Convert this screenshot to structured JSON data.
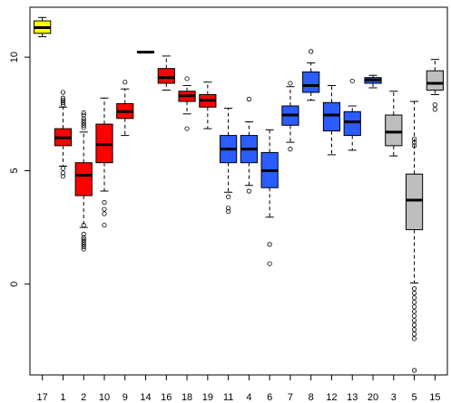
{
  "chart_data": {
    "type": "box",
    "title": "",
    "xlabel": "",
    "ylabel": "",
    "ylim": [
      -4,
      12.2
    ],
    "yticks": [
      0,
      5,
      10
    ],
    "grid": false,
    "legend": "none",
    "categories": [
      "17",
      "1",
      "2",
      "10",
      "9",
      "14",
      "16",
      "18",
      "19",
      "11",
      "4",
      "6",
      "7",
      "8",
      "12",
      "13",
      "20",
      "3",
      "5",
      "15"
    ],
    "colors": {
      "yellow": "#ffff00",
      "red": "#ff0000",
      "blue": "#2a5cff",
      "gray": "#bebebe"
    },
    "boxes": [
      {
        "label": "17",
        "color": "yellow",
        "whisker_low": 10.9,
        "q1": 11.05,
        "median": 11.3,
        "q3": 11.6,
        "whisker_high": 11.75,
        "outliers": []
      },
      {
        "label": "1",
        "color": "red",
        "whisker_low": 5.2,
        "q1": 6.1,
        "median": 6.45,
        "q3": 6.85,
        "whisker_high": 7.8,
        "outliers": [
          4.75,
          4.9,
          5.1,
          7.9,
          8.0,
          8.1,
          8.2,
          8.45
        ]
      },
      {
        "label": "2",
        "color": "red",
        "whisker_low": 2.5,
        "q1": 3.9,
        "median": 4.8,
        "q3": 5.35,
        "whisker_high": 6.7,
        "outliers": [
          1.55,
          1.65,
          1.75,
          1.85,
          1.95,
          2.05,
          2.2,
          2.6,
          6.9,
          7.0,
          7.1,
          7.2,
          7.3,
          7.45,
          7.55
        ]
      },
      {
        "label": "10",
        "color": "red",
        "whisker_low": 4.1,
        "q1": 5.35,
        "median": 6.15,
        "q3": 7.05,
        "whisker_high": 8.2,
        "outliers": [
          2.6,
          3.1,
          3.3,
          3.6
        ]
      },
      {
        "label": "9",
        "color": "red",
        "whisker_low": 6.55,
        "q1": 7.3,
        "median": 7.6,
        "q3": 7.95,
        "whisker_high": 8.6,
        "outliers": [
          8.9
        ]
      },
      {
        "label": "14",
        "color": "red",
        "whisker_low": 10.2,
        "q1": 10.2,
        "median": 10.22,
        "q3": 10.25,
        "whisker_high": 10.25,
        "outliers": []
      },
      {
        "label": "16",
        "color": "red",
        "whisker_low": 8.55,
        "q1": 8.85,
        "median": 9.1,
        "q3": 9.5,
        "whisker_high": 10.05,
        "outliers": []
      },
      {
        "label": "18",
        "color": "red",
        "whisker_low": 7.5,
        "q1": 8.05,
        "median": 8.3,
        "q3": 8.5,
        "whisker_high": 8.75,
        "outliers": [
          6.85,
          9.05
        ]
      },
      {
        "label": "19",
        "color": "red",
        "whisker_low": 6.85,
        "q1": 7.8,
        "median": 8.1,
        "q3": 8.35,
        "whisker_high": 8.9,
        "outliers": []
      },
      {
        "label": "11",
        "color": "blue",
        "whisker_low": 4.05,
        "q1": 5.35,
        "median": 5.95,
        "q3": 6.55,
        "whisker_high": 7.75,
        "outliers": [
          3.2,
          3.35,
          3.85
        ]
      },
      {
        "label": "4",
        "color": "blue",
        "whisker_low": 4.35,
        "q1": 5.35,
        "median": 5.95,
        "q3": 6.55,
        "whisker_high": 7.15,
        "outliers": [
          4.1,
          8.15
        ]
      },
      {
        "label": "6",
        "color": "blue",
        "whisker_low": 2.95,
        "q1": 4.25,
        "median": 5.0,
        "q3": 5.8,
        "whisker_high": 6.8,
        "outliers": [
          0.9,
          1.75
        ]
      },
      {
        "label": "7",
        "color": "blue",
        "whisker_low": 6.25,
        "q1": 7.0,
        "median": 7.45,
        "q3": 7.85,
        "whisker_high": 8.7,
        "outliers": [
          5.95,
          8.85
        ]
      },
      {
        "label": "8",
        "color": "blue",
        "whisker_low": 8.1,
        "q1": 8.45,
        "median": 8.75,
        "q3": 9.35,
        "whisker_high": 9.75,
        "outliers": [
          10.25
        ]
      },
      {
        "label": "12",
        "color": "blue",
        "whisker_low": 5.7,
        "q1": 6.75,
        "median": 7.45,
        "q3": 8.0,
        "whisker_high": 8.75,
        "outliers": []
      },
      {
        "label": "13",
        "color": "blue",
        "whisker_low": 5.9,
        "q1": 6.55,
        "median": 7.15,
        "q3": 7.6,
        "whisker_high": 7.85,
        "outliers": [
          8.95
        ]
      },
      {
        "label": "20",
        "color": "blue",
        "whisker_low": 8.65,
        "q1": 8.85,
        "median": 9.0,
        "q3": 9.1,
        "whisker_high": 9.2,
        "outliers": []
      },
      {
        "label": "3",
        "color": "gray",
        "whisker_low": 5.65,
        "q1": 6.1,
        "median": 6.7,
        "q3": 7.45,
        "whisker_high": 8.5,
        "outliers": []
      },
      {
        "label": "5",
        "color": "gray",
        "whisker_low": 0.05,
        "q1": 2.4,
        "median": 3.7,
        "q3": 4.85,
        "whisker_high": 8.05,
        "outliers": [
          -0.2,
          -0.4,
          -0.6,
          -0.8,
          -1.0,
          -1.2,
          -1.4,
          -1.6,
          -1.8,
          -2.0,
          -2.2,
          -2.4,
          -3.8,
          6.1,
          6.25,
          6.4
        ]
      },
      {
        "label": "15",
        "color": "gray",
        "whisker_low": 8.35,
        "q1": 8.55,
        "median": 8.85,
        "q3": 9.4,
        "whisker_high": 9.9,
        "outliers": [
          7.7,
          7.9
        ]
      }
    ]
  }
}
